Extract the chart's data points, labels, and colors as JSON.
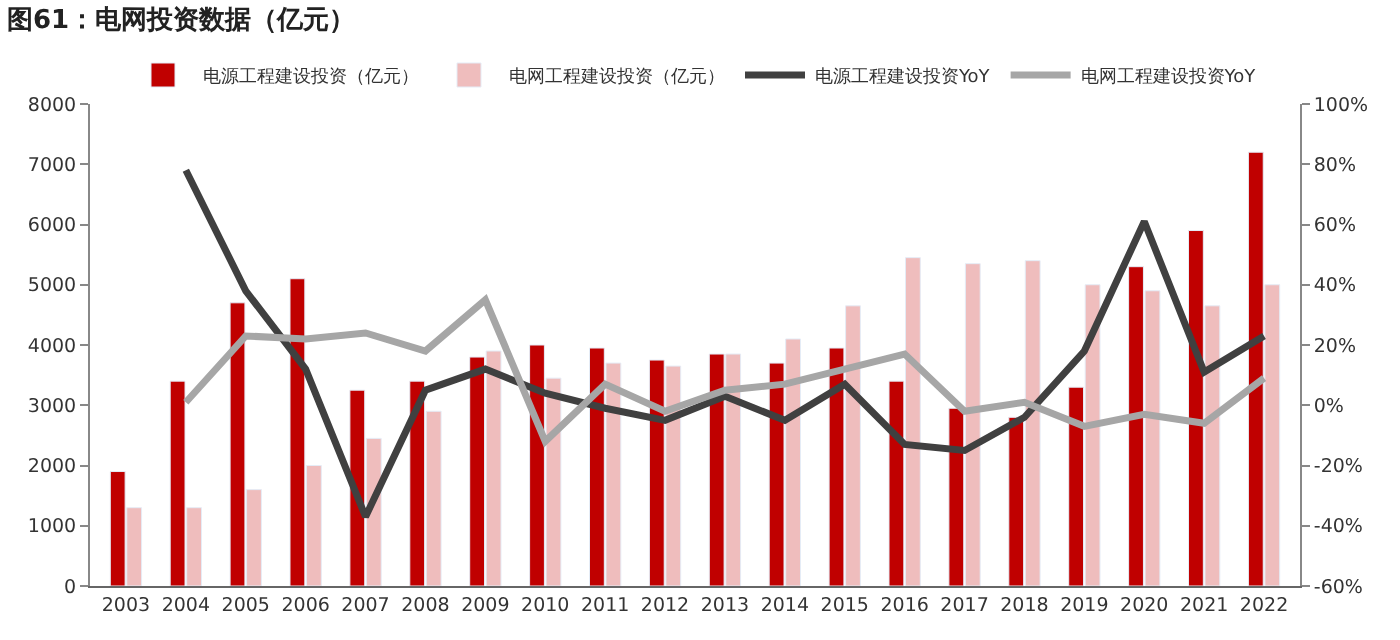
{
  "chart_data": {
    "type": "bar",
    "title": "图61：电网投资数据（亿元）",
    "categories": [
      "2003",
      "2004",
      "2005",
      "2006",
      "2007",
      "2008",
      "2009",
      "2010",
      "2011",
      "2012",
      "2013",
      "2014",
      "2015",
      "2016",
      "2017",
      "2018",
      "2019",
      "2020",
      "2021",
      "2022"
    ],
    "series": [
      {
        "name": "电源工程建设投资（亿元）",
        "color": "#c00000",
        "values": [
          1900,
          3400,
          4700,
          5100,
          3250,
          3400,
          3800,
          4000,
          3950,
          3750,
          3850,
          3700,
          3950,
          3400,
          2950,
          2800,
          3300,
          5300,
          5900,
          7200
        ]
      },
      {
        "name": "电网工程建设投资（亿元）",
        "color": "#efbdbd",
        "values": [
          1300,
          1300,
          1600,
          2000,
          2450,
          2900,
          3900,
          3450,
          3700,
          3650,
          3850,
          4100,
          4650,
          5450,
          5350,
          5400,
          5000,
          4900,
          4650,
          5000
        ]
      },
      {
        "name": "电源工程建设投资YoY",
        "type": "line",
        "axis": "y2",
        "color": "#404040",
        "values": [
          null,
          78,
          38,
          12,
          -37,
          5,
          12,
          4,
          -1,
          -5,
          3,
          -5,
          7,
          -13,
          -15,
          -4,
          18,
          61,
          11,
          23
        ]
      },
      {
        "name": "电网工程建设投资YoY",
        "type": "line",
        "axis": "y2",
        "color": "#a6a6a6",
        "values": [
          null,
          1,
          23,
          22,
          24,
          18,
          35,
          -12,
          7,
          -2,
          5,
          7,
          12,
          17,
          -2,
          1,
          -7,
          -3,
          -6,
          9
        ]
      }
    ],
    "ylim": [
      0,
      8000
    ],
    "yticks": [
      0,
      1000,
      2000,
      3000,
      4000,
      5000,
      6000,
      7000,
      8000
    ],
    "y2lim": [
      -60,
      100
    ],
    "y2ticks": [
      {
        "value": -60,
        "label": "-60%"
      },
      {
        "value": -40,
        "label": "-40%"
      },
      {
        "value": -20,
        "label": "-20%"
      },
      {
        "value": 0,
        "label": "0%"
      },
      {
        "value": 20,
        "label": "20%"
      },
      {
        "value": 40,
        "label": "40%"
      },
      {
        "value": 60,
        "label": "60%"
      },
      {
        "value": 80,
        "label": "80%"
      },
      {
        "value": 100,
        "label": "100%"
      }
    ],
    "legend": "top",
    "marker": "none",
    "line_style": "solid"
  }
}
